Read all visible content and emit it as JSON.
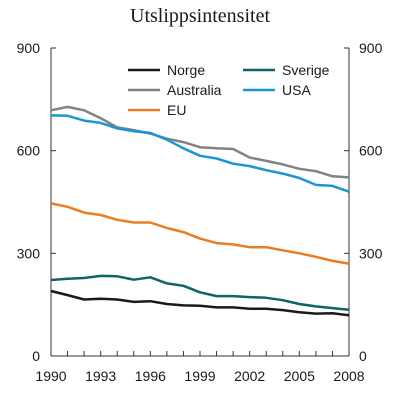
{
  "chart_data": {
    "type": "line",
    "title": "Utslippsintensitet",
    "xlabel": "",
    "ylabel": "",
    "x": [
      1990,
      1991,
      1992,
      1993,
      1994,
      1995,
      1996,
      1997,
      1998,
      1999,
      2000,
      2001,
      2002,
      2003,
      2004,
      2005,
      2006,
      2007,
      2008
    ],
    "xlim": [
      1990,
      2008
    ],
    "ylim": [
      0,
      900
    ],
    "x_ticks": [
      "1990",
      "1993",
      "1996",
      "1999",
      "2002",
      "2005",
      "2008"
    ],
    "x_tick_values": [
      1990,
      1993,
      1996,
      1999,
      2002,
      2005,
      2008
    ],
    "y_ticks": [
      "0",
      "300",
      "600",
      "900"
    ],
    "y_tick_values": [
      0,
      300,
      600,
      900
    ],
    "grid": false,
    "legend_position": "top-right",
    "series": [
      {
        "name": "Norge",
        "color": "#1a1a1a",
        "values": [
          190,
          178,
          165,
          167,
          165,
          158,
          160,
          152,
          148,
          147,
          142,
          142,
          138,
          138,
          134,
          128,
          124,
          125,
          119
        ]
      },
      {
        "name": "Sverige",
        "color": "#0e6466",
        "values": [
          222,
          226,
          228,
          234,
          233,
          223,
          230,
          212,
          205,
          186,
          175,
          175,
          172,
          170,
          163,
          152,
          145,
          140,
          135
        ]
      },
      {
        "name": "Australia",
        "color": "#828282",
        "values": [
          718,
          728,
          718,
          695,
          668,
          660,
          650,
          635,
          625,
          610,
          607,
          605,
          580,
          570,
          560,
          547,
          540,
          525,
          522
        ]
      },
      {
        "name": "USA",
        "color": "#1b95d3",
        "values": [
          703,
          702,
          688,
          681,
          665,
          657,
          652,
          632,
          607,
          585,
          577,
          562,
          555,
          543,
          533,
          520,
          500,
          497,
          480
        ]
      },
      {
        "name": "EU",
        "color": "#ea7d22",
        "values": [
          446,
          436,
          419,
          412,
          398,
          390,
          390,
          374,
          362,
          343,
          330,
          326,
          318,
          318,
          309,
          300,
          290,
          278,
          270
        ]
      }
    ]
  }
}
